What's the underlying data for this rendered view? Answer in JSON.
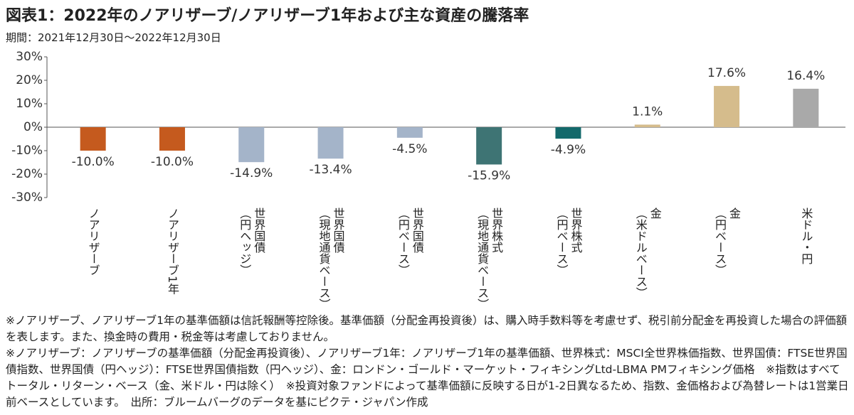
{
  "chart_data": {
    "type": "bar",
    "title": "図表1：2022年のノアリザーブ/ノアリザーブ1年および主な資産の騰落率",
    "subtitle": "期間：2021年12月30日～2022年12月30日",
    "categories": [
      "ノアリザーブ",
      "ノアリザーブ1年",
      "世界国債\n（円ヘッジ）",
      "世界国債\n（現地通貨ベース）",
      "世界国債\n（円ベース）",
      "世界株式\n（現地通貨ベース）",
      "世界株式\n（円ベース）",
      "金\n（米ドルベース）",
      "金\n（円ベース）",
      "米ドル・円"
    ],
    "values": [
      -10.0,
      -10.0,
      -14.9,
      -13.4,
      -4.5,
      -15.9,
      -4.9,
      1.1,
      17.6,
      16.4
    ],
    "value_labels": [
      "-10.0%",
      "-10.0%",
      "-14.9%",
      "-13.4%",
      "-4.5%",
      "-15.9%",
      "-4.9%",
      "1.1%",
      "17.6%",
      "16.4%"
    ],
    "colors": [
      "#c55a1e",
      "#c55a1e",
      "#a4b4c9",
      "#a4b4c9",
      "#a4b4c9",
      "#3e7474",
      "#13696b",
      "#d5bc8c",
      "#d5bc8c",
      "#a9a9a9"
    ],
    "ylim": [
      -30,
      30
    ],
    "yticks": [
      {
        "value": 30,
        "label": "30%"
      },
      {
        "value": 20,
        "label": "20%"
      },
      {
        "value": 10,
        "label": "10%"
      },
      {
        "value": 0,
        "label": "0%"
      },
      {
        "value": -10,
        "label": "-10%"
      },
      {
        "value": -20,
        "label": "-20%"
      },
      {
        "value": -30,
        "label": "-30%"
      }
    ]
  },
  "notes": [
    "※ノアリザーブ、ノアリザーブ1年の基準価額は信託報酬等控除後。基準価額（分配金再投資後）は、購入時手数料等を考慮せず、税引前分配金を再投資した場合の評価額を表します。また、換金時の費用・税金等は考慮しておりません。",
    "※ノアリザーブ：ノアリザーブの基準価額（分配金再投資後）、ノアリザーブ1年：ノアリザーブ1年の基準価額、世界株式：MSCI全世界株価指数、世界国債：FTSE世界国債指数、世界国債（円ヘッジ）：FTSE世界国債指数（円ヘッジ）、金：ロンドン・ゴールド・マーケット・フィキシングLtd-LBMA PMフィキシング価格　※指数はすべてトータル・リターン・ベース（金、米ドル・円は除く）　※投資対象ファンドによって基準価額に反映する日が1-2日異なるため、指数、金価格および為替レートは1営業日前ベースとしています。　出所：ブルームバーグのデータを基にピクテ・ジャパン作成"
  ]
}
